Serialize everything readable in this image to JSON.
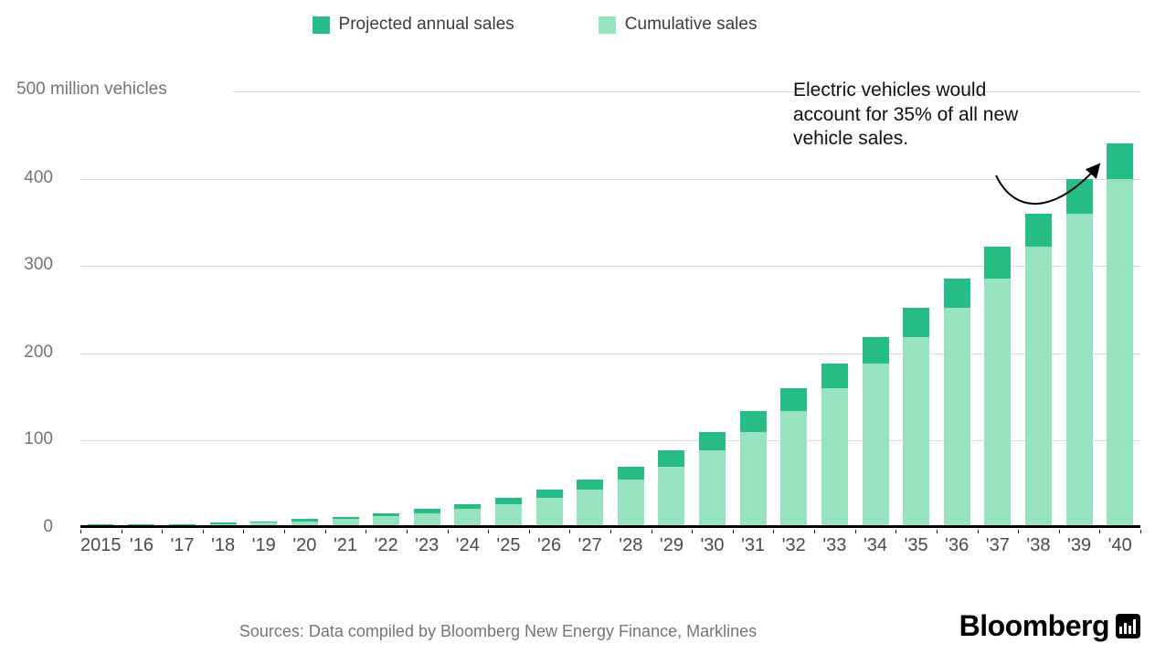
{
  "legend": {
    "items": [
      {
        "label": "Projected annual sales",
        "color": "#26bd86"
      },
      {
        "label": "Cumulative sales",
        "color": "#97e3bf"
      }
    ]
  },
  "source": "Sources: Data compiled by Bloomberg New Energy Finance, Marklines",
  "logo": "Bloomberg",
  "chart_data": {
    "type": "bar",
    "stacked": true,
    "title": "",
    "unit": "million vehicles",
    "y_axis_top_label": "500 million vehicles",
    "ylim": [
      0,
      500
    ],
    "y_ticks": [
      0,
      100,
      200,
      300,
      400
    ],
    "grid": "horizontal",
    "legend_position": "top",
    "annotation": "Electric vehicles would account for 35% of all new vehicle sales.",
    "categories": [
      "2015",
      "'16",
      "'17",
      "'18",
      "'19",
      "'20",
      "'21",
      "'22",
      "'23",
      "'24",
      "'25",
      "'26",
      "'27",
      "'28",
      "'29",
      "'30",
      "'31",
      "'32",
      "'33",
      "'34",
      "'35",
      "'36",
      "'37",
      "'38",
      "'39",
      "'40"
    ],
    "series": [
      {
        "name": "Cumulative sales",
        "color": "#97e3bf",
        "values": [
          0.3,
          0.8,
          1.5,
          2.5,
          3.9,
          5.7,
          8,
          11,
          14.5,
          19.5,
          25,
          32.5,
          41.5,
          53,
          68,
          87,
          108,
          132,
          158,
          186,
          217,
          250,
          284,
          320,
          358,
          398
        ]
      },
      {
        "name": "Projected annual sales",
        "color": "#26bd86",
        "values": [
          0.5,
          0.7,
          1,
          1.4,
          1.8,
          2.3,
          3,
          3.5,
          5,
          5.5,
          7.5,
          9,
          11.5,
          15,
          19,
          21,
          24,
          26,
          28,
          31,
          33,
          34,
          36,
          38,
          40,
          40
        ]
      }
    ]
  }
}
